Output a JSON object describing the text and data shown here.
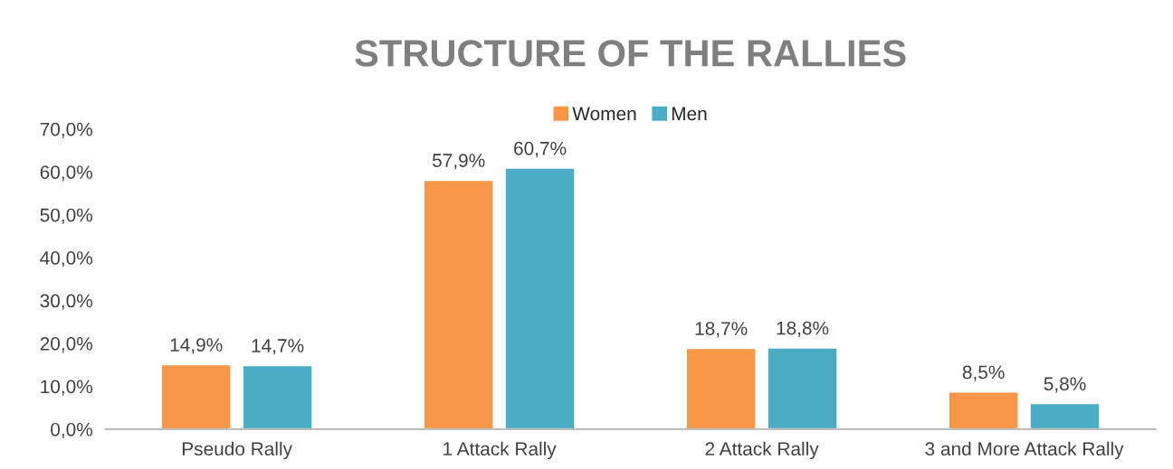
{
  "chart_data": {
    "type": "bar",
    "title": "STRUCTURE OF THE RALLIES",
    "categories": [
      "Pseudo Rally",
      "1 Attack Rally",
      "2 Attack Rally",
      "3 and More Attack Rally"
    ],
    "series": [
      {
        "name": "Women",
        "color": "#f79646",
        "values": [
          14.9,
          57.9,
          18.7,
          8.5
        ],
        "value_labels": [
          "14,9%",
          "57,9%",
          "18,7%",
          "8,5%"
        ]
      },
      {
        "name": "Men",
        "color": "#4bacc6",
        "values": [
          14.7,
          60.7,
          18.8,
          5.8
        ],
        "value_labels": [
          "14,7%",
          "60,7%",
          "18,8%",
          "5,8%"
        ]
      }
    ],
    "ylim": [
      0,
      70
    ],
    "yticks": [
      {
        "value": 0,
        "label": "0,0%"
      },
      {
        "value": 10,
        "label": "10,0%"
      },
      {
        "value": 20,
        "label": "20,0%"
      },
      {
        "value": 30,
        "label": "30,0%"
      },
      {
        "value": 40,
        "label": "40,0%"
      },
      {
        "value": 50,
        "label": "50,0%"
      },
      {
        "value": 60,
        "label": "60,0%"
      },
      {
        "value": 70,
        "label": "70,0%"
      }
    ],
    "grid": false,
    "legend": "top"
  }
}
